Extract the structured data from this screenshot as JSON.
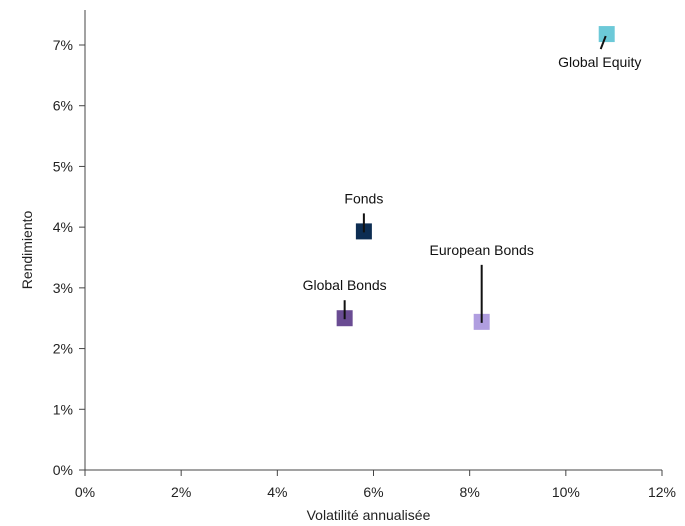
{
  "chart_data": {
    "type": "scatter",
    "title": "",
    "xlabel": "Volatilité annualisée",
    "ylabel": "Rendimiento",
    "xlim": [
      0,
      12
    ],
    "ylim": [
      0,
      7.6
    ],
    "x_ticks": [
      0,
      2,
      4,
      6,
      8,
      10,
      12
    ],
    "x_tick_labels": [
      "0%",
      "2%",
      "4%",
      "6%",
      "8%",
      "10%",
      "12%"
    ],
    "y_ticks": [
      0,
      1,
      2,
      3,
      4,
      5,
      6,
      7
    ],
    "y_tick_labels": [
      "0%",
      "1%",
      "2%",
      "3%",
      "4%",
      "5%",
      "6%",
      "7%"
    ],
    "grid": false,
    "legend": "none",
    "points": [
      {
        "label": "Global Equity",
        "x": 10.85,
        "y": 7.18,
        "color": "#6cc9d8"
      },
      {
        "label": "Fonds",
        "x": 5.8,
        "y": 3.93,
        "color": "#0d2d52"
      },
      {
        "label": "Global Bonds",
        "x": 5.4,
        "y": 2.5,
        "color": "#6a4c93"
      },
      {
        "label": "European Bonds",
        "x": 8.25,
        "y": 2.44,
        "color": "#b09ee0"
      }
    ]
  }
}
